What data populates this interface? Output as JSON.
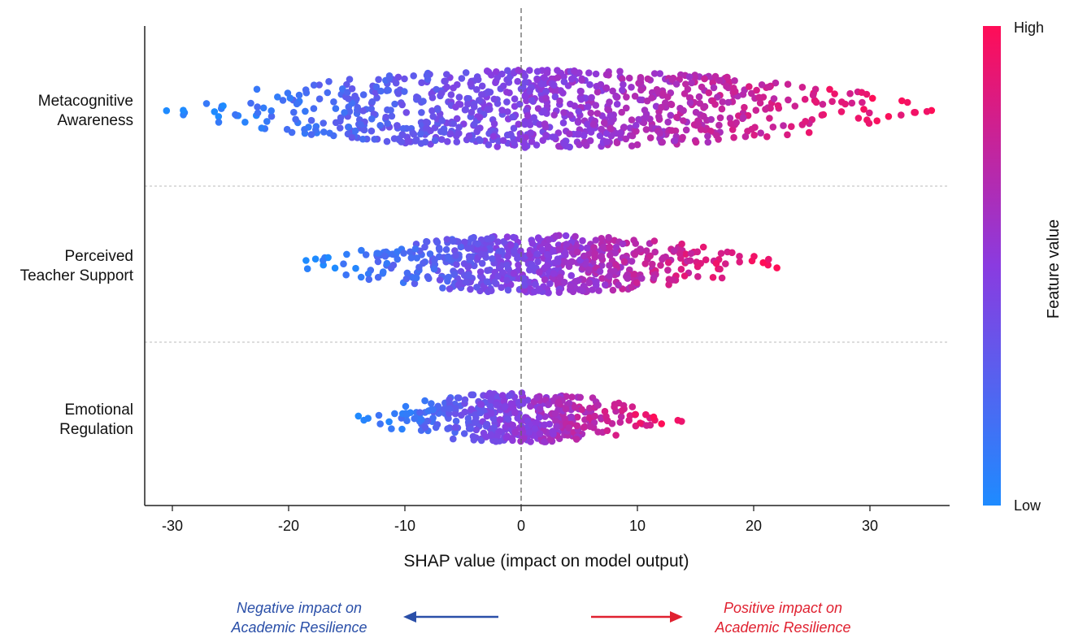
{
  "chart_data": {
    "type": "scatter",
    "subtype": "beeswarm",
    "title": "",
    "xlabel": "SHAP value (impact on model output)",
    "xlim": [
      -33.5,
      36.5
    ],
    "xticks": [
      -30,
      -20,
      -10,
      0,
      10,
      20,
      30
    ],
    "features": [
      {
        "name": [
          "Metacognitive",
          "Awareness"
        ],
        "min": -30.5,
        "max": 35.3,
        "half_width": 3.1,
        "dots": 900
      },
      {
        "name": [
          "Perceived",
          "Teacher Support"
        ],
        "min": -18.5,
        "max": 22.0,
        "half_width": 2.3,
        "dots": 640
      },
      {
        "name": [
          "Emotional",
          "Regulation"
        ],
        "min": -14.0,
        "max": 13.8,
        "half_width": 2.0,
        "dots": 430
      }
    ],
    "colorbar": {
      "label": "Feature value",
      "high": "High",
      "low": "Low"
    },
    "colors": {
      "low": "#1e8bff",
      "high": "#ff0d57"
    },
    "grid": false,
    "zero_line": true
  },
  "annotations": {
    "negative": [
      "Negative impact on",
      "Academic Resilience"
    ],
    "positive": [
      "Positive impact on",
      "Academic Resilience"
    ],
    "negative_color": "#2a4fa8",
    "positive_color": "#e02130"
  }
}
